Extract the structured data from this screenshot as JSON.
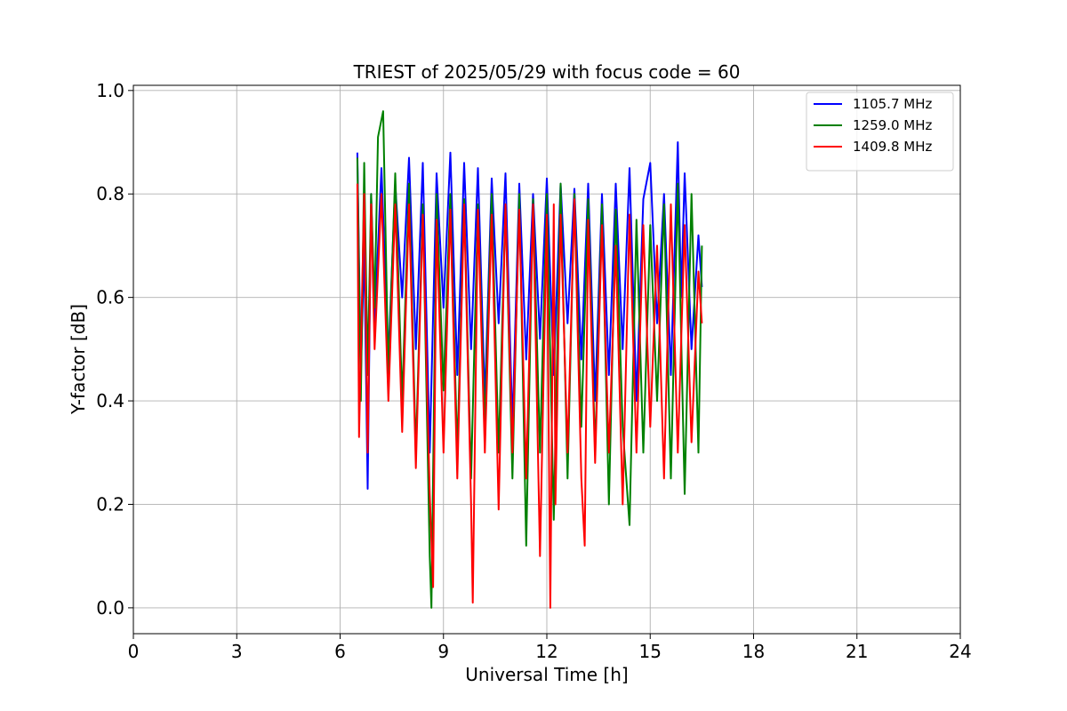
{
  "chart_data": {
    "type": "line",
    "title": "TRIEST of 2025/05/29 with focus code = 60",
    "xlabel": "Universal Time [h]",
    "ylabel": "Y-factor [dB]",
    "xlim": [
      0,
      24
    ],
    "ylim": [
      -0.05,
      1.01
    ],
    "xticks": [
      0,
      3,
      6,
      9,
      12,
      15,
      18,
      21,
      24
    ],
    "xtick_labels": [
      "0",
      "3",
      "6",
      "9",
      "12",
      "15",
      "18",
      "21",
      "24"
    ],
    "yticks": [
      0.0,
      0.2,
      0.4,
      0.6,
      0.8,
      1.0
    ],
    "ytick_labels": [
      "0.0",
      "0.2",
      "0.4",
      "0.6",
      "0.8",
      "1.0"
    ],
    "grid": true,
    "legend_position": "top-right",
    "x_range_observed": [
      6.5,
      16.5
    ],
    "series": [
      {
        "name": "1105.7 MHz",
        "color": "#0000ff",
        "x": [
          6.5,
          6.6,
          6.7,
          6.8,
          6.9,
          7.0,
          7.2,
          7.4,
          7.6,
          7.8,
          8.0,
          8.2,
          8.4,
          8.6,
          8.8,
          9.0,
          9.2,
          9.4,
          9.6,
          9.8,
          10.0,
          10.2,
          10.4,
          10.6,
          10.8,
          11.0,
          11.2,
          11.4,
          11.6,
          11.8,
          12.0,
          12.2,
          12.4,
          12.6,
          12.8,
          13.0,
          13.2,
          13.4,
          13.6,
          13.8,
          14.0,
          14.2,
          14.4,
          14.6,
          14.8,
          15.0,
          15.2,
          15.4,
          15.6,
          15.8,
          15.9,
          16.0,
          16.2,
          16.4,
          16.5
        ],
        "y": [
          0.88,
          0.45,
          0.7,
          0.23,
          0.8,
          0.55,
          0.85,
          0.48,
          0.82,
          0.6,
          0.87,
          0.5,
          0.86,
          0.3,
          0.84,
          0.58,
          0.88,
          0.45,
          0.86,
          0.5,
          0.85,
          0.4,
          0.83,
          0.55,
          0.84,
          0.35,
          0.82,
          0.48,
          0.8,
          0.52,
          0.83,
          0.45,
          0.82,
          0.55,
          0.81,
          0.48,
          0.82,
          0.4,
          0.8,
          0.45,
          0.82,
          0.5,
          0.85,
          0.4,
          0.79,
          0.86,
          0.55,
          0.8,
          0.45,
          0.9,
          0.6,
          0.84,
          0.5,
          0.72,
          0.62
        ]
      },
      {
        "name": "1259.0 MHz",
        "color": "#008000",
        "x": [
          6.5,
          6.6,
          6.7,
          6.8,
          6.9,
          7.0,
          7.1,
          7.25,
          7.4,
          7.6,
          7.8,
          8.0,
          8.2,
          8.4,
          8.6,
          8.65,
          8.8,
          9.0,
          9.2,
          9.4,
          9.6,
          9.8,
          10.0,
          10.2,
          10.4,
          10.6,
          10.8,
          11.0,
          11.2,
          11.4,
          11.6,
          11.8,
          12.0,
          12.2,
          12.4,
          12.6,
          12.8,
          13.0,
          13.2,
          13.4,
          13.6,
          13.8,
          14.0,
          14.2,
          14.4,
          14.6,
          14.8,
          15.0,
          15.2,
          15.4,
          15.6,
          15.8,
          16.0,
          16.2,
          16.4,
          16.5
        ],
        "y": [
          0.87,
          0.4,
          0.86,
          0.45,
          0.8,
          0.58,
          0.91,
          0.96,
          0.45,
          0.84,
          0.4,
          0.82,
          0.3,
          0.78,
          0.1,
          0.0,
          0.8,
          0.42,
          0.8,
          0.3,
          0.79,
          0.25,
          0.78,
          0.35,
          0.8,
          0.3,
          0.78,
          0.25,
          0.8,
          0.12,
          0.79,
          0.3,
          0.8,
          0.17,
          0.82,
          0.25,
          0.8,
          0.35,
          0.79,
          0.3,
          0.78,
          0.2,
          0.77,
          0.35,
          0.16,
          0.75,
          0.3,
          0.74,
          0.4,
          0.78,
          0.25,
          0.82,
          0.22,
          0.8,
          0.3,
          0.7
        ]
      },
      {
        "name": "1409.8 MHz",
        "color": "#ff0000",
        "x": [
          6.5,
          6.55,
          6.7,
          6.8,
          6.9,
          7.0,
          7.2,
          7.4,
          7.6,
          7.8,
          8.0,
          8.2,
          8.4,
          8.6,
          8.7,
          8.8,
          9.0,
          9.2,
          9.4,
          9.6,
          9.8,
          9.85,
          10.0,
          10.2,
          10.4,
          10.6,
          10.8,
          11.0,
          11.2,
          11.4,
          11.6,
          11.8,
          12.0,
          12.1,
          12.2,
          12.25,
          12.4,
          12.6,
          12.8,
          13.0,
          13.1,
          13.2,
          13.4,
          13.6,
          13.8,
          14.0,
          14.2,
          14.4,
          14.6,
          14.8,
          15.0,
          15.2,
          15.4,
          15.6,
          15.8,
          16.0,
          16.2,
          16.4,
          16.5
        ],
        "y": [
          0.82,
          0.33,
          0.8,
          0.3,
          0.78,
          0.5,
          0.8,
          0.4,
          0.78,
          0.34,
          0.78,
          0.27,
          0.76,
          0.22,
          0.04,
          0.75,
          0.3,
          0.77,
          0.25,
          0.78,
          0.2,
          0.01,
          0.77,
          0.3,
          0.76,
          0.19,
          0.78,
          0.3,
          0.77,
          0.25,
          0.78,
          0.1,
          0.76,
          0.0,
          0.78,
          0.2,
          0.76,
          0.3,
          0.79,
          0.25,
          0.12,
          0.75,
          0.28,
          0.74,
          0.3,
          0.7,
          0.2,
          0.76,
          0.3,
          0.74,
          0.35,
          0.7,
          0.25,
          0.78,
          0.3,
          0.74,
          0.32,
          0.65,
          0.55
        ]
      }
    ]
  }
}
